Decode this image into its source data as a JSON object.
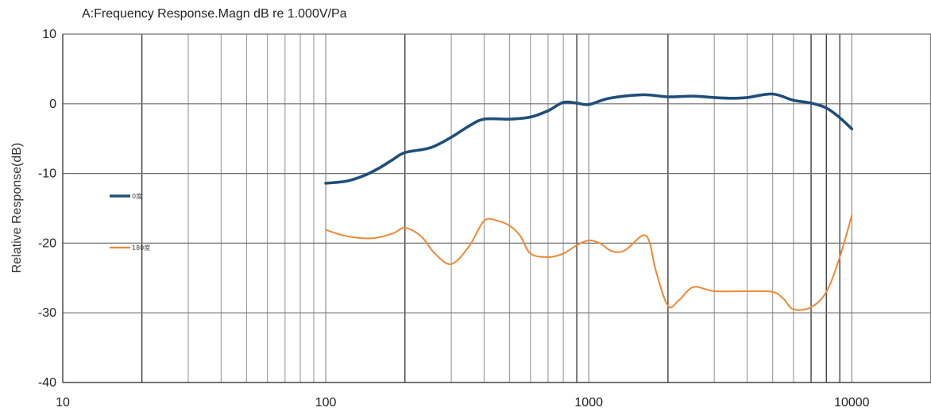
{
  "chart_data": {
    "type": "line",
    "title": "A:Frequency Response.Magn dB re 1.000V/Pa",
    "xlabel": "",
    "ylabel": "Relative Response(dB)",
    "xscale": "log",
    "xlim": [
      10,
      20000
    ],
    "ylim": [
      -40,
      10
    ],
    "x_ticks": [
      10,
      100,
      1000,
      10000
    ],
    "x_tick_labels": [
      "10",
      "100",
      "1000",
      "10000"
    ],
    "y_ticks": [
      10,
      0,
      -10,
      -20,
      -30,
      -40
    ],
    "y_tick_labels": [
      "10",
      "0",
      "-10",
      "-20",
      "-30",
      "-40"
    ],
    "grid": true,
    "legend_position": "left",
    "series": [
      {
        "name": "0度",
        "color": "#1f4e79",
        "points": [
          [
            100,
            -11.4
          ],
          [
            120,
            -11.1
          ],
          [
            140,
            -10.3
          ],
          [
            160,
            -9.2
          ],
          [
            180,
            -8.0
          ],
          [
            200,
            -7.0
          ],
          [
            250,
            -6.3
          ],
          [
            300,
            -4.8
          ],
          [
            350,
            -3.2
          ],
          [
            400,
            -2.2
          ],
          [
            500,
            -2.2
          ],
          [
            600,
            -1.9
          ],
          [
            700,
            -1.0
          ],
          [
            800,
            0.2
          ],
          [
            900,
            0.1
          ],
          [
            1000,
            -0.1
          ],
          [
            1200,
            0.8
          ],
          [
            1600,
            1.3
          ],
          [
            2000,
            1.0
          ],
          [
            2500,
            1.1
          ],
          [
            3000,
            0.9
          ],
          [
            3500,
            0.8
          ],
          [
            4000,
            0.9
          ],
          [
            5000,
            1.4
          ],
          [
            6000,
            0.5
          ],
          [
            7000,
            0.1
          ],
          [
            8000,
            -0.6
          ],
          [
            9000,
            -2.0
          ],
          [
            10000,
            -3.6
          ]
        ]
      },
      {
        "name": "180度",
        "color": "#ed8936",
        "points": [
          [
            100,
            -18.1
          ],
          [
            120,
            -19.0
          ],
          [
            150,
            -19.3
          ],
          [
            180,
            -18.6
          ],
          [
            200,
            -17.8
          ],
          [
            230,
            -19.0
          ],
          [
            260,
            -21.5
          ],
          [
            300,
            -23.0
          ],
          [
            350,
            -20.5
          ],
          [
            400,
            -16.8
          ],
          [
            450,
            -16.8
          ],
          [
            500,
            -17.5
          ],
          [
            550,
            -19.0
          ],
          [
            600,
            -21.5
          ],
          [
            700,
            -22.0
          ],
          [
            800,
            -21.5
          ],
          [
            900,
            -20.3
          ],
          [
            1000,
            -19.6
          ],
          [
            1100,
            -20.0
          ],
          [
            1200,
            -21.0
          ],
          [
            1300,
            -21.3
          ],
          [
            1400,
            -20.8
          ],
          [
            1600,
            -18.9
          ],
          [
            1700,
            -19.8
          ],
          [
            1800,
            -24.0
          ],
          [
            2000,
            -29.0
          ],
          [
            2200,
            -28.2
          ],
          [
            2500,
            -26.3
          ],
          [
            3000,
            -26.9
          ],
          [
            4000,
            -26.9
          ],
          [
            5000,
            -27.0
          ],
          [
            5500,
            -28.0
          ],
          [
            6000,
            -29.5
          ],
          [
            7000,
            -29.2
          ],
          [
            8000,
            -27.0
          ],
          [
            9000,
            -22.0
          ],
          [
            10000,
            -16.0
          ]
        ]
      }
    ]
  }
}
